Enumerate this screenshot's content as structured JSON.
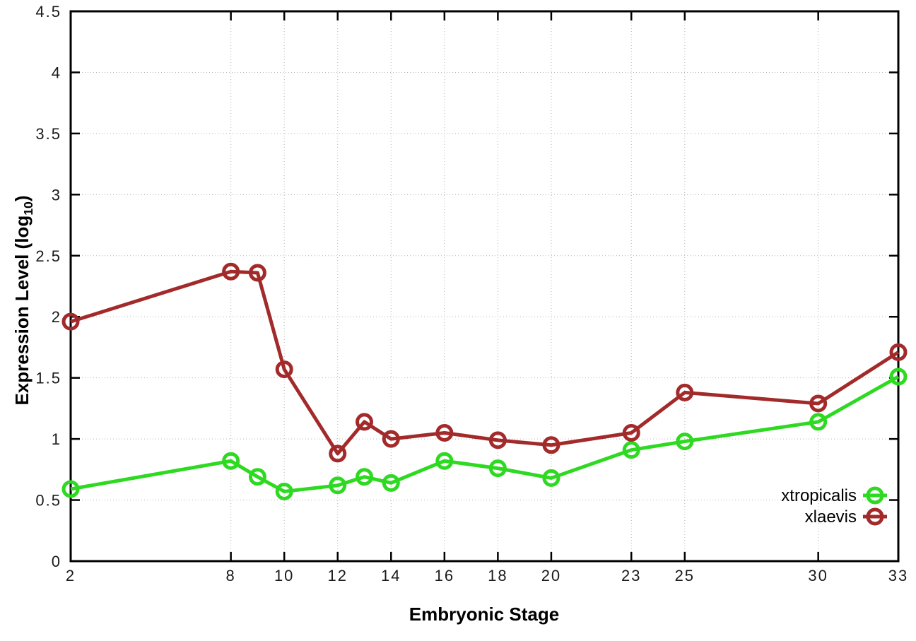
{
  "chart_data": {
    "type": "line",
    "xlabel": "Embryonic Stage",
    "ylabel_pre": "Expression Level (log",
    "ylabel_sub": "10",
    "ylabel_post": ")",
    "xlim": [
      2,
      33
    ],
    "ylim": [
      0,
      4.5
    ],
    "grid": true,
    "legend_position": "inside-bottom-right",
    "x": [
      2,
      8,
      9,
      10,
      12,
      13,
      14,
      16,
      18,
      20,
      23,
      25,
      30,
      33
    ],
    "x_ticks": [
      2,
      8,
      10,
      12,
      14,
      16,
      18,
      20,
      23,
      25,
      30,
      33
    ],
    "x_tick_labels": [
      "2",
      "8",
      "10",
      "12",
      "14",
      "16",
      "18",
      "20",
      "23",
      "25",
      "30",
      "33"
    ],
    "y_ticks": [
      0,
      0.5,
      1,
      1.5,
      2,
      2.5,
      3,
      3.5,
      4,
      4.5
    ],
    "y_tick_labels": [
      "0",
      "0.5",
      "1",
      "1.5",
      "2",
      "2.5",
      "3",
      "3.5",
      "4",
      "4.5"
    ],
    "series": [
      {
        "name": "xtropicalis",
        "color": "#2ed921",
        "values": [
          0.59,
          0.82,
          0.69,
          0.57,
          0.62,
          0.69,
          0.64,
          0.82,
          0.76,
          0.68,
          0.91,
          0.98,
          1.14,
          1.51
        ]
      },
      {
        "name": "xlaevis",
        "color": "#a32a2a",
        "values": [
          1.96,
          2.37,
          2.36,
          1.57,
          0.88,
          1.14,
          1.0,
          1.05,
          0.99,
          0.95,
          1.05,
          1.38,
          1.29,
          1.71
        ]
      }
    ],
    "colors": {
      "background": "#ffffff",
      "grid": "#b4b4b4",
      "axis": "#000000",
      "text": "#000000"
    }
  }
}
